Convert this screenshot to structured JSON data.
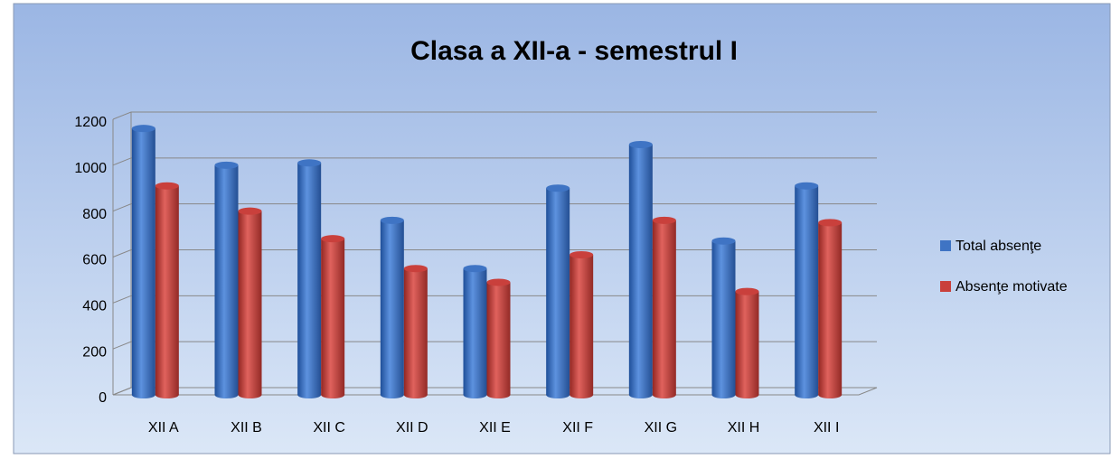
{
  "chart_data": {
    "type": "bar",
    "title": "Clasa a XII-a - semestrul I",
    "categories": [
      "XII A",
      "XII  B",
      "XII  C",
      "XII  D",
      "XII E",
      "XII  F",
      "XII  G",
      "XII  H",
      "XII  I"
    ],
    "series": [
      {
        "name": "Total absenţe",
        "color": "#3f74c4",
        "values": [
          1160,
          1000,
          1010,
          760,
          550,
          900,
          1090,
          670,
          910
        ]
      },
      {
        "name": "Absenţe motivate",
        "color": "#c9403c",
        "values": [
          910,
          800,
          680,
          550,
          490,
          610,
          760,
          450,
          750
        ]
      }
    ],
    "ylim": [
      0,
      1200
    ],
    "yticks": [
      0,
      200,
      400,
      600,
      800,
      1000,
      1200
    ],
    "grid": true,
    "legend": "right"
  }
}
